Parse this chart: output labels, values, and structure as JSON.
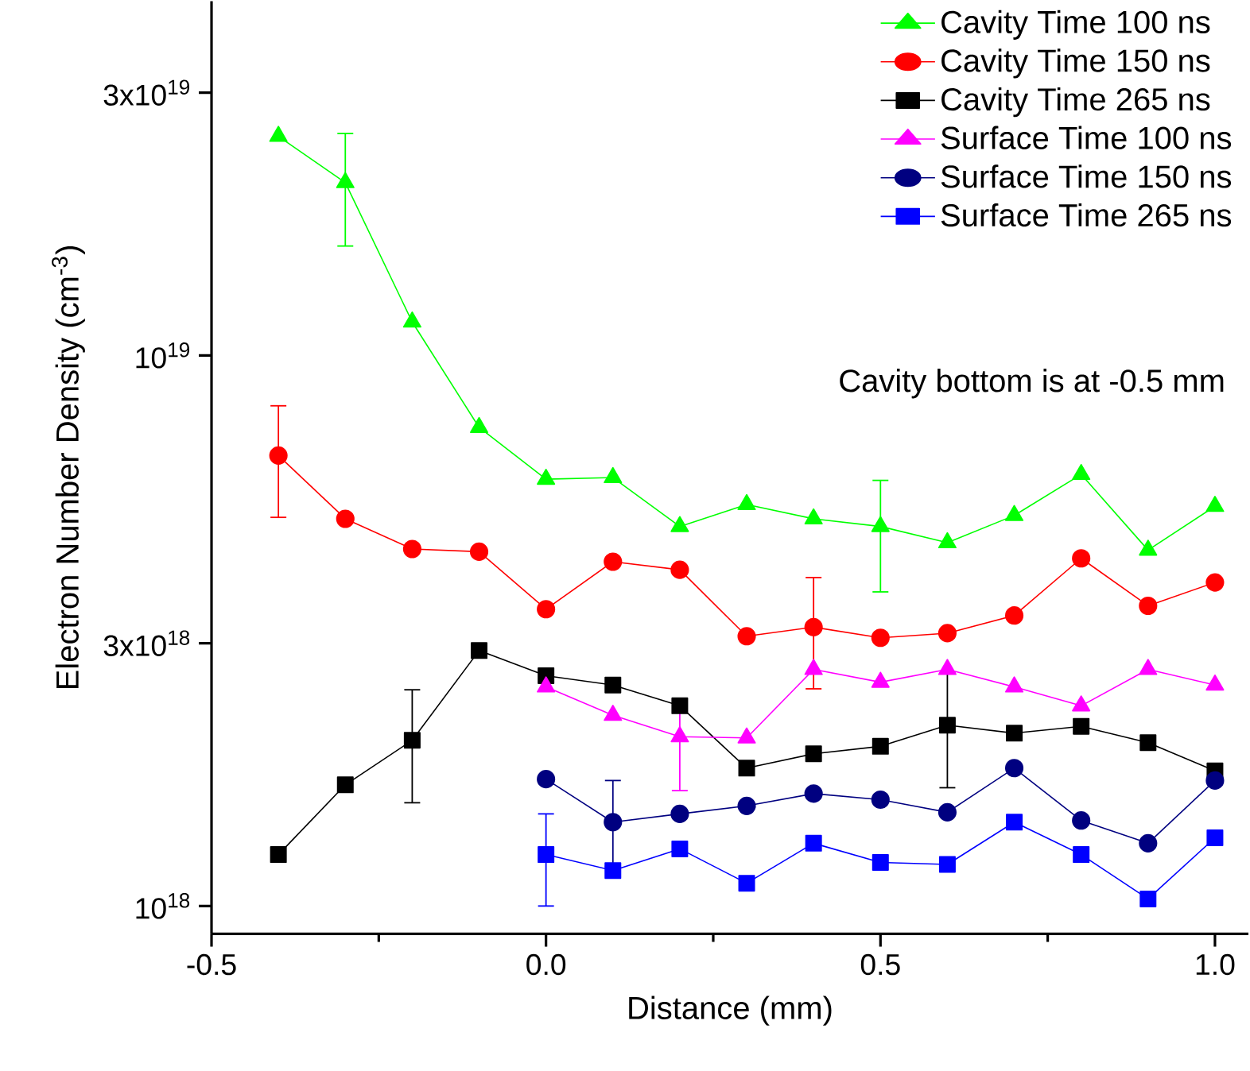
{
  "chart_data": {
    "type": "line",
    "xlabel": "Distance (mm)",
    "ylabel": "Electron Number Density (cm$^{-3}$)",
    "x": [
      -0.4,
      -0.3,
      -0.2,
      -0.1,
      0.0,
      0.1,
      0.2,
      0.3,
      0.4,
      0.5,
      0.6,
      0.7,
      0.8,
      0.9,
      1.0
    ],
    "series": [
      {
        "name": "Cavity Time 100 ns",
        "color": "#00ff00",
        "marker": "triangle",
        "values": [
          2.5e+19,
          2.06e+19,
          1.15e+19,
          7.4e+18,
          5.96e+18,
          6e+18,
          4.89e+18,
          5.36e+18,
          5.05e+18,
          4.89e+18,
          4.57e+18,
          5.12e+18,
          6.08e+18,
          4.43e+18,
          5.32e+18
        ],
        "errors": [
          null,
          [
            1.58e+19,
            2.53e+19
          ],
          null,
          null,
          null,
          null,
          null,
          null,
          null,
          [
            3.72e+18,
            5.93e+18
          ],
          null,
          null,
          null,
          null,
          null
        ]
      },
      {
        "name": "Cavity Time 150 ns",
        "color": "#ff0000",
        "marker": "circle",
        "values": [
          6.58e+18,
          5.05e+18,
          4.45e+18,
          4.4e+18,
          3.46e+18,
          4.22e+18,
          4.08e+18,
          3.09e+18,
          3.21e+18,
          3.07e+18,
          3.13e+18,
          3.37e+18,
          4.28e+18,
          3.51e+18,
          3.87e+18
        ],
        "errors": [
          [
            5.08e+18,
            8.1e+18
          ],
          null,
          null,
          null,
          null,
          null,
          null,
          null,
          [
            2.48e+18,
            3.95e+18
          ],
          null,
          null,
          null,
          null,
          null,
          null
        ]
      },
      {
        "name": "Cavity Time 265 ns",
        "color": "#000000",
        "marker": "square",
        "values": [
          1.24e+18,
          1.66e+18,
          2e+18,
          2.91e+18,
          2.62e+18,
          2.52e+18,
          2.31e+18,
          1.78e+18,
          1.89e+18,
          1.95e+18,
          2.13e+18,
          2.06e+18,
          2.12e+18,
          1.98e+18,
          1.76e+18
        ],
        "errors": [
          null,
          null,
          [
            1.54e+18,
            2.47e+18
          ],
          null,
          null,
          null,
          null,
          null,
          null,
          null,
          [
            1.64e+18,
            2.65e+18
          ],
          null,
          null,
          null,
          null
        ]
      },
      {
        "name": "Surface Time 100 ns",
        "color": "#ff00ff",
        "marker": "triangle",
        "x": [
          0.0,
          0.1,
          0.2,
          0.3,
          0.4,
          0.5,
          0.6,
          0.7,
          0.8,
          0.9,
          1.0
        ],
        "values": [
          2.5e+18,
          2.22e+18,
          2.03e+18,
          2.02e+18,
          2.69e+18,
          2.55e+18,
          2.69e+18,
          2.5e+18,
          2.31e+18,
          2.69e+18,
          2.52e+18
        ],
        "errors": [
          null,
          null,
          [
            1.62e+18,
            2.37e+18
          ],
          null,
          null,
          null,
          null,
          null,
          null,
          null,
          null
        ]
      },
      {
        "name": "Surface Time 150 ns",
        "color": "#000080",
        "marker": "circle",
        "x": [
          0.0,
          0.1,
          0.2,
          0.3,
          0.4,
          0.5,
          0.6,
          0.7,
          0.8,
          0.9,
          1.0
        ],
        "values": [
          1.7e+18,
          1.42e+18,
          1.47e+18,
          1.52e+18,
          1.6e+18,
          1.56e+18,
          1.48e+18,
          1.78e+18,
          1.43e+18,
          1.3e+18,
          1.69e+18
        ],
        "errors": [
          null,
          [
            1.18e+18,
            1.69e+18
          ],
          null,
          null,
          null,
          null,
          null,
          null,
          null,
          null,
          null
        ]
      },
      {
        "name": "Surface Time 265 ns",
        "color": "#0000ff",
        "marker": "square",
        "x": [
          0.0,
          0.1,
          0.2,
          0.3,
          0.4,
          0.5,
          0.6,
          0.7,
          0.8,
          0.9,
          1.0
        ],
        "values": [
          1.24e+18,
          1.16e+18,
          1.27e+18,
          1.1e+18,
          1.3e+18,
          1.2e+18,
          1.19e+18,
          1.42e+18,
          1.24e+18,
          1.03e+18,
          1.33e+18
        ],
        "errors": [
          [
            1e+18,
            1.47e+18
          ],
          null,
          null,
          null,
          null,
          null,
          null,
          null,
          null,
          null,
          null
        ]
      }
    ],
    "log": "y",
    "xlim": [
      -0.5,
      1.05
    ],
    "ylim": [
      8.9e+17,
      4.4e+19
    ],
    "xticks": [
      -0.5,
      {
        "value": 0.0,
        "label": "0.0"
      },
      0.5,
      {
        "value": 1.0,
        "label": "1.0"
      }
    ],
    "yticks": [
      {
        "value": 1e+18,
        "label": "10$^{18}$"
      },
      {
        "value": 3e+18,
        "label": "3x10$^{18}$"
      },
      {
        "value": 1e+19,
        "label": "10$^{19}$"
      },
      {
        "value": 3e+19,
        "label": "3x10$^{19}$"
      }
    ],
    "legend": "top right",
    "grid": false,
    "annotations": [
      "Cavity bottom is at -0.5 mm"
    ]
  }
}
